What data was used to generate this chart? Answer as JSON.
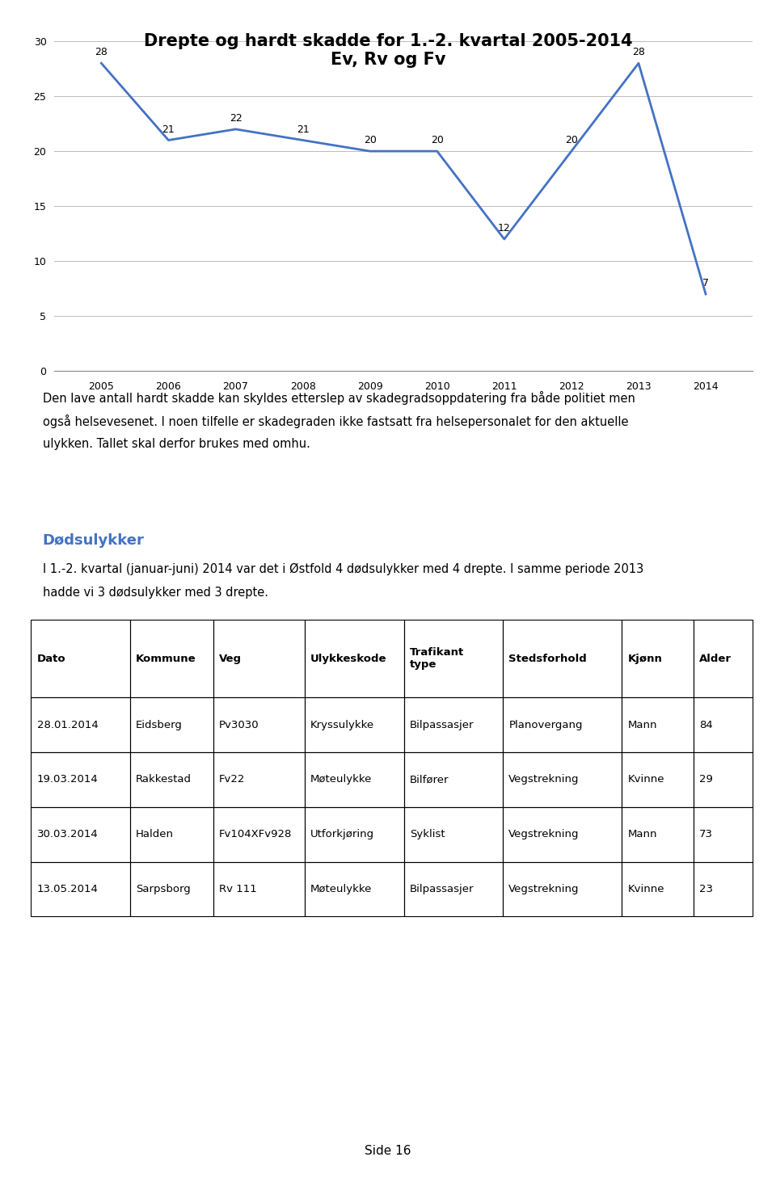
{
  "title_line1": "Drepte og hardt skadde for 1.-2. kvartal 2005-2014",
  "title_line2": "Ev, Rv og Fv",
  "years": [
    2005,
    2006,
    2007,
    2008,
    2009,
    2010,
    2011,
    2012,
    2013,
    2014
  ],
  "values": [
    28,
    21,
    22,
    21,
    20,
    20,
    12,
    20,
    28,
    7
  ],
  "ylim": [
    0,
    30
  ],
  "yticks": [
    0,
    5,
    10,
    15,
    20,
    25,
    30
  ],
  "line_color": "#4472C4",
  "line_width": 2.0,
  "body_text_line1": "Den lave antall hardt skadde kan skyldes etterslep av skadegradsoppdatering fra både politiet men",
  "body_text_line2": "også helsevesenet. I noen tilfelle er skadegraden ikke fastsatt fra helsepersonalet for den aktuelle",
  "body_text_line3": "ulykken. Tallet skal derfor brukes med omhu.",
  "section_title": "Dødsulykker",
  "section_title_color": "#4472C4",
  "section_body_line1": "I 1.-2. kvartal (januar-juni) 2014 var det i Østfold 4 dødsulykker med 4 drepte. I samme periode 2013",
  "section_body_line2": "hadde vi 3 dødsulykker med 3 drepte.",
  "table_headers": [
    "Dato",
    "Kommune",
    "Veg",
    "Ulykkeskode",
    "Trafikant\ntype",
    "Stedsforhold",
    "Kjønn",
    "Alder"
  ],
  "table_rows": [
    [
      "28.01.2014",
      "Eidsberg",
      "Pv3030",
      "Kryssulykke",
      "Bilpassasjer",
      "Planovergang",
      "Mann",
      "84"
    ],
    [
      "19.03.2014",
      "Rakkestad",
      "Fv22",
      "Møteulykke",
      "Bilfører",
      "Vegstrekning",
      "Kvinne",
      "29"
    ],
    [
      "30.03.2014",
      "Halden",
      "Fv104XFv928",
      "Utforkjøring",
      "Syklist",
      "Vegstrekning",
      "Mann",
      "73"
    ],
    [
      "13.05.2014",
      "Sarpsborg",
      "Rv 111",
      "Møteulykke",
      "Bilpassasjer",
      "Vegstrekning",
      "Kvinne",
      "23"
    ]
  ],
  "page_label": "Side 16",
  "background_color": "#ffffff",
  "data_label_fontsize": 9,
  "axis_label_fontsize": 9,
  "title_fontsize": 15,
  "col_widths": [
    0.125,
    0.105,
    0.115,
    0.125,
    0.125,
    0.15,
    0.09,
    0.075
  ]
}
